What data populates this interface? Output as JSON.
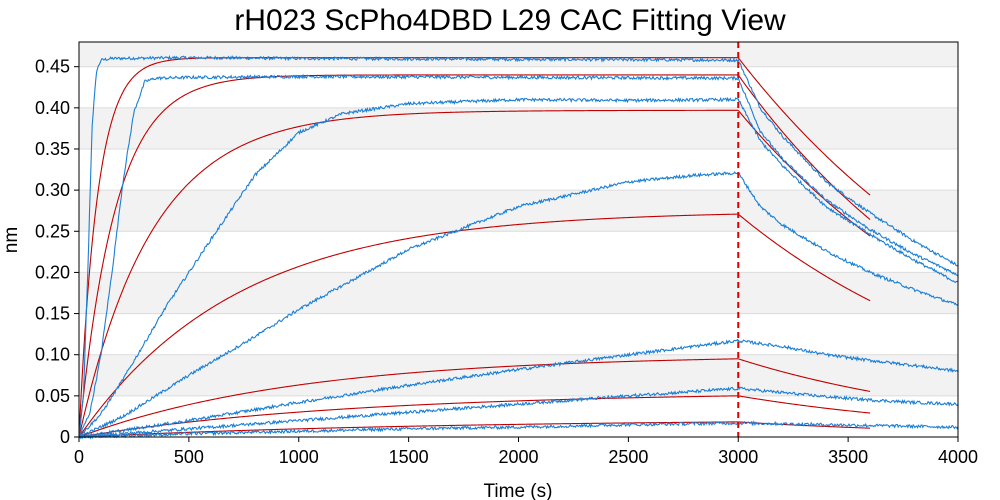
{
  "chart_data": {
    "type": "line",
    "title": "rH023 ScPho4DBD L29 CAC Fitting View",
    "xlabel": "Time (s)",
    "ylabel": "nm",
    "xlim": [
      0,
      4000
    ],
    "ylim": [
      0,
      0.48
    ],
    "xticks": [
      0,
      500,
      1000,
      1500,
      2000,
      2500,
      3000,
      3500,
      4000
    ],
    "xtick_labels": [
      "0",
      "500",
      "1000",
      "1500",
      "2000",
      "2500",
      "3000",
      "3500",
      "4000"
    ],
    "yticks": [
      0,
      0.05,
      0.1,
      0.15,
      0.2,
      0.25,
      0.3,
      0.35,
      0.4,
      0.45
    ],
    "ytick_labels": [
      "0",
      "0.05",
      "0.10",
      "0.15",
      "0.20",
      "0.25",
      "0.30",
      "0.35",
      "0.40",
      "0.45"
    ],
    "grid": "horizontal-bands",
    "reference_line": {
      "x": 3000,
      "style": "dashed",
      "color": "#e00000"
    },
    "colors": {
      "data": "#1a7fd6",
      "fit": "#c00000",
      "band": "#f2f2f2",
      "grid": "#dcdcdc"
    },
    "data_series": [
      {
        "assoc": [
          [
            0,
            0
          ],
          [
            20,
            0.05
          ],
          [
            40,
            0.2
          ],
          [
            60,
            0.38
          ],
          [
            80,
            0.445
          ],
          [
            100,
            0.458
          ],
          [
            150,
            0.46
          ],
          [
            500,
            0.461
          ],
          [
            1000,
            0.46
          ],
          [
            2000,
            0.459
          ],
          [
            3000,
            0.458
          ]
        ],
        "dissoc": [
          [
            3000,
            0.458
          ],
          [
            3100,
            0.4
          ],
          [
            3200,
            0.366
          ],
          [
            3400,
            0.31
          ],
          [
            3600,
            0.272
          ],
          [
            3800,
            0.238
          ],
          [
            4000,
            0.208
          ]
        ]
      },
      {
        "assoc": [
          [
            0,
            0
          ],
          [
            50,
            0.03
          ],
          [
            100,
            0.1
          ],
          [
            150,
            0.2
          ],
          [
            200,
            0.31
          ],
          [
            250,
            0.395
          ],
          [
            300,
            0.432
          ],
          [
            350,
            0.436
          ],
          [
            500,
            0.437
          ],
          [
            1000,
            0.438
          ],
          [
            2000,
            0.437
          ],
          [
            3000,
            0.436
          ]
        ],
        "dissoc": [
          [
            3000,
            0.436
          ],
          [
            3100,
            0.372
          ],
          [
            3200,
            0.338
          ],
          [
            3400,
            0.288
          ],
          [
            3600,
            0.252
          ],
          [
            3800,
            0.222
          ],
          [
            4000,
            0.197
          ]
        ]
      },
      {
        "assoc": [
          [
            0,
            0
          ],
          [
            100,
            0.028
          ],
          [
            200,
            0.07
          ],
          [
            400,
            0.16
          ],
          [
            600,
            0.24
          ],
          [
            800,
            0.318
          ],
          [
            1000,
            0.37
          ],
          [
            1200,
            0.393
          ],
          [
            1500,
            0.405
          ],
          [
            2000,
            0.41
          ],
          [
            2500,
            0.409
          ],
          [
            3000,
            0.41
          ]
        ],
        "dissoc": [
          [
            3000,
            0.41
          ],
          [
            3100,
            0.36
          ],
          [
            3200,
            0.33
          ],
          [
            3400,
            0.28
          ],
          [
            3600,
            0.246
          ],
          [
            3800,
            0.215
          ],
          [
            4000,
            0.187
          ]
        ]
      },
      {
        "assoc": [
          [
            0,
            0
          ],
          [
            200,
            0.025
          ],
          [
            500,
            0.075
          ],
          [
            800,
            0.122
          ],
          [
            1000,
            0.155
          ],
          [
            1500,
            0.228
          ],
          [
            2000,
            0.28
          ],
          [
            2500,
            0.31
          ],
          [
            2800,
            0.318
          ],
          [
            3000,
            0.321
          ]
        ],
        "dissoc": [
          [
            3000,
            0.321
          ],
          [
            3100,
            0.28
          ],
          [
            3200,
            0.258
          ],
          [
            3400,
            0.226
          ],
          [
            3600,
            0.2
          ],
          [
            3800,
            0.179
          ],
          [
            4000,
            0.16
          ]
        ]
      },
      {
        "assoc": [
          [
            0,
            0
          ],
          [
            500,
            0.02
          ],
          [
            1000,
            0.042
          ],
          [
            1500,
            0.063
          ],
          [
            2000,
            0.082
          ],
          [
            2500,
            0.1
          ],
          [
            3000,
            0.117
          ]
        ],
        "dissoc": [
          [
            3000,
            0.117
          ],
          [
            3200,
            0.11
          ],
          [
            3400,
            0.1
          ],
          [
            3600,
            0.093
          ],
          [
            3800,
            0.087
          ],
          [
            4000,
            0.08
          ]
        ]
      },
      {
        "assoc": [
          [
            0,
            0
          ],
          [
            500,
            0.01
          ],
          [
            1000,
            0.02
          ],
          [
            1500,
            0.03
          ],
          [
            2000,
            0.04
          ],
          [
            2500,
            0.05
          ],
          [
            3000,
            0.059
          ]
        ],
        "dissoc": [
          [
            3000,
            0.059
          ],
          [
            3200,
            0.054
          ],
          [
            3400,
            0.049
          ],
          [
            3600,
            0.045
          ],
          [
            3800,
            0.042
          ],
          [
            4000,
            0.04
          ]
        ]
      },
      {
        "assoc": [
          [
            0,
            0
          ],
          [
            500,
            0.004
          ],
          [
            1000,
            0.007
          ],
          [
            1500,
            0.01
          ],
          [
            2000,
            0.012
          ],
          [
            2500,
            0.015
          ],
          [
            3000,
            0.017
          ]
        ],
        "dissoc": [
          [
            3000,
            0.017
          ],
          [
            3200,
            0.016
          ],
          [
            3400,
            0.015
          ],
          [
            3600,
            0.014
          ],
          [
            3800,
            0.013
          ],
          [
            4000,
            0.012
          ]
        ]
      }
    ],
    "fit_series": [
      {
        "rmax": 0.461,
        "kobs": 0.012,
        "koff": 0.00075
      },
      {
        "rmax": 0.44,
        "kobs": 0.006,
        "koff": 0.00085
      },
      {
        "rmax": 0.397,
        "kobs": 0.003,
        "koff": 0.00081
      },
      {
        "rmax": 0.275,
        "kobs": 0.0014,
        "koff": 0.00082
      },
      {
        "rmax": 0.1,
        "kobs": 0.001,
        "koff": 0.0009
      },
      {
        "rmax": 0.055,
        "kobs": 0.0008,
        "koff": 0.0009
      },
      {
        "rmax": 0.022,
        "kobs": 0.0006,
        "koff": 0.0009
      }
    ],
    "fit_end_time": 3600
  }
}
